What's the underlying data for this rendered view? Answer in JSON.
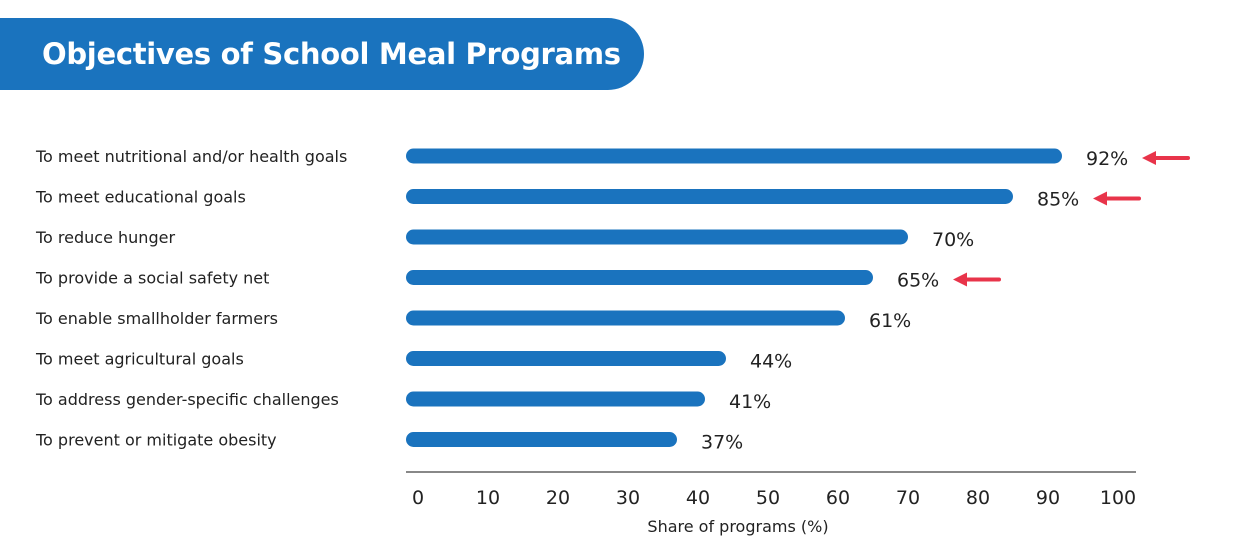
{
  "header": {
    "title": "Objectives of School Meal Programs"
  },
  "colors": {
    "banner": "#1a73be",
    "bar": "#1a73be",
    "arrow": "#e8344a",
    "axis": "#888888"
  },
  "chart_data": {
    "type": "bar",
    "orientation": "horizontal",
    "categories": [
      "To meet nutritional and/or health goals",
      "To meet educational goals",
      "To reduce hunger",
      "To provide a social safety net",
      "To enable smallholder farmers",
      "To meet agricultural goals",
      "To address gender-specific challenges",
      "To prevent or mitigate obesity"
    ],
    "values": [
      92,
      85,
      70,
      65,
      61,
      44,
      41,
      37
    ],
    "value_labels": [
      "92%",
      "85%",
      "70%",
      "65%",
      "61%",
      "44%",
      "41%",
      "37%"
    ],
    "highlighted": [
      true,
      true,
      false,
      true,
      false,
      false,
      false,
      false
    ],
    "xlim": [
      0,
      100
    ],
    "xticks": [
      "0",
      "10",
      "20",
      "30",
      "40",
      "50",
      "60",
      "70",
      "80",
      "90",
      "100"
    ],
    "xlabel": "Share of programs (%)",
    "grid": false,
    "legend": "none"
  }
}
